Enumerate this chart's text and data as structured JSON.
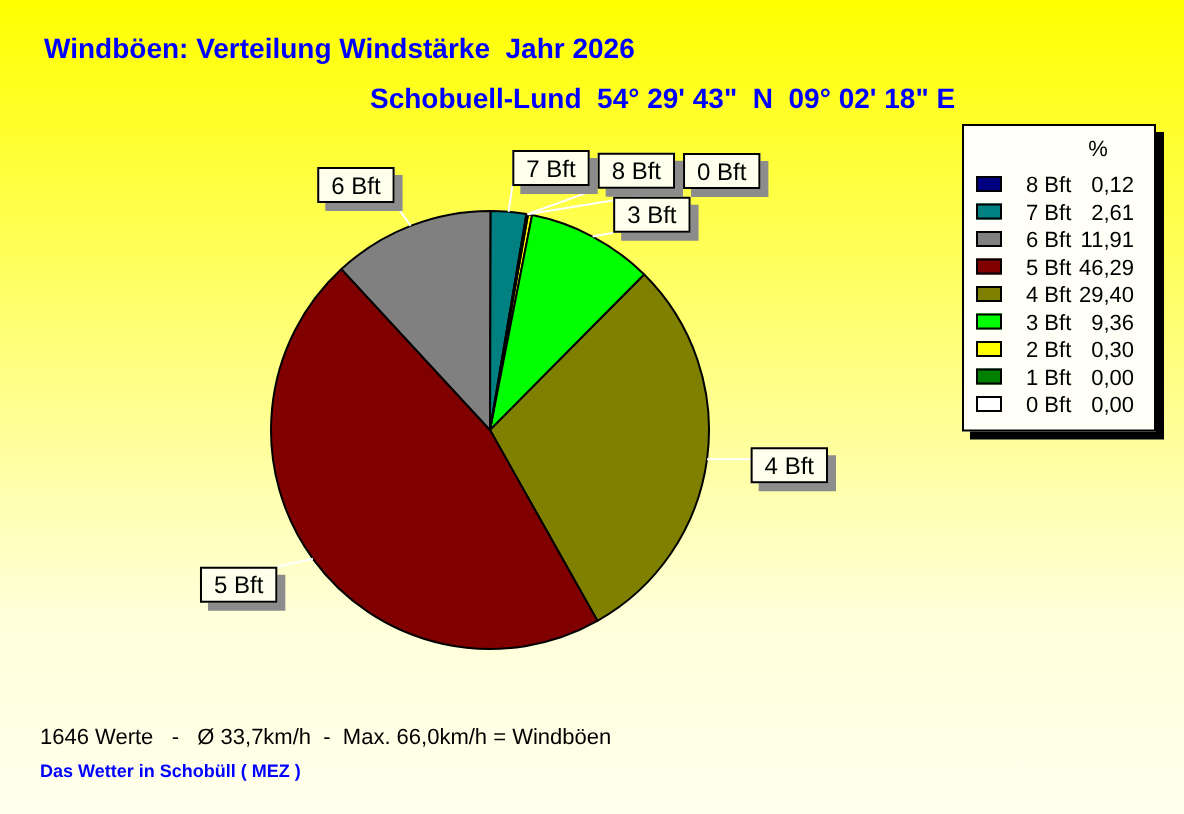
{
  "chart_data": {
    "type": "pie",
    "title": "Windböen: Verteilung Windstärke  Jahr 2026",
    "subtitle": "Schobuell-Lund  54° 29' 43\"  N  09° 02' 18\" E",
    "legend_title": "%",
    "legend": "top right",
    "categories": [
      "0 Bft",
      "1 Bft",
      "2 Bft",
      "3 Bft",
      "4 Bft",
      "5 Bft",
      "6 Bft",
      "7 Bft",
      "8 Bft"
    ],
    "values": [
      0,
      0,
      0.3,
      9.36,
      29.4,
      46.29,
      11.91,
      2.61,
      0.12
    ],
    "colors": [
      "#ffffff",
      "#008000",
      "#ffff00",
      "#00ff00",
      "#808000",
      "#800000",
      "#808080",
      "#008080",
      "#000080"
    ],
    "value_labels": [
      "0,00",
      "0,00",
      "0,30",
      "9,36",
      "29,40",
      "46,29",
      "11,91",
      "2,61",
      "0,12"
    ],
    "annotations": [
      {
        "text": "7 Bft",
        "x": "7 Bft"
      },
      {
        "text": "8 Bft",
        "x": "8 Bft"
      },
      {
        "text": "0 Bft",
        "x": "0 Bft"
      },
      {
        "text": "3 Bft",
        "x": "3 Bft"
      },
      {
        "text": "6 Bft",
        "x": "6 Bft"
      },
      {
        "text": "4 Bft",
        "x": "4 Bft"
      },
      {
        "text": "5 Bft",
        "x": "5 Bft"
      },
      "1646 Werte   -   Ø 33,7km/h  -  Max. 66,0km/h = Windböen",
      "Das Wetter in Schobüll ( MEZ )"
    ]
  }
}
